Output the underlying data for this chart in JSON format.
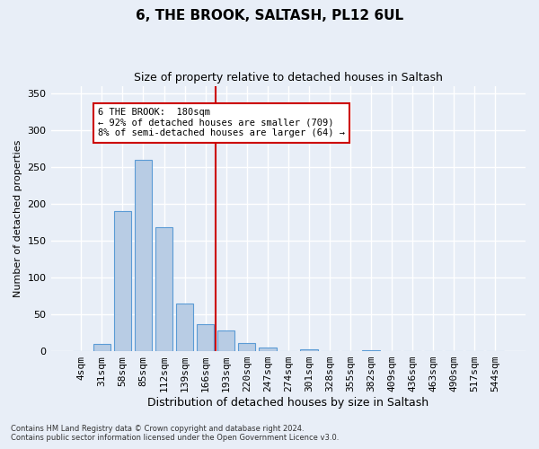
{
  "title": "6, THE BROOK, SALTASH, PL12 6UL",
  "subtitle": "Size of property relative to detached houses in Saltash",
  "xlabel": "Distribution of detached houses by size in Saltash",
  "ylabel": "Number of detached properties",
  "bin_labels": [
    "4sqm",
    "31sqm",
    "58sqm",
    "85sqm",
    "112sqm",
    "139sqm",
    "166sqm",
    "193sqm",
    "220sqm",
    "247sqm",
    "274sqm",
    "301sqm",
    "328sqm",
    "355sqm",
    "382sqm",
    "409sqm",
    "436sqm",
    "463sqm",
    "490sqm",
    "517sqm",
    "544sqm"
  ],
  "bar_heights": [
    0,
    10,
    190,
    260,
    168,
    65,
    37,
    28,
    11,
    5,
    0,
    3,
    0,
    0,
    1,
    0,
    0,
    0,
    0,
    0,
    0
  ],
  "bar_color": "#b8cce4",
  "bar_edge_color": "#5b9bd5",
  "vline_x": 6.5,
  "annotation_line1": "6 THE BROOK:  180sqm",
  "annotation_line2": "← 92% of detached houses are smaller (709)",
  "annotation_line3": "8% of semi-detached houses are larger (64) →",
  "annotation_box_color": "#ffffff",
  "annotation_box_edge_color": "#cc0000",
  "vline_color": "#cc0000",
  "ylim": [
    0,
    360
  ],
  "yticks": [
    0,
    50,
    100,
    150,
    200,
    250,
    300,
    350
  ],
  "background_color": "#e8eef7",
  "grid_color": "#ffffff",
  "footer_line1": "Contains HM Land Registry data © Crown copyright and database right 2024.",
  "footer_line2": "Contains public sector information licensed under the Open Government Licence v3.0."
}
